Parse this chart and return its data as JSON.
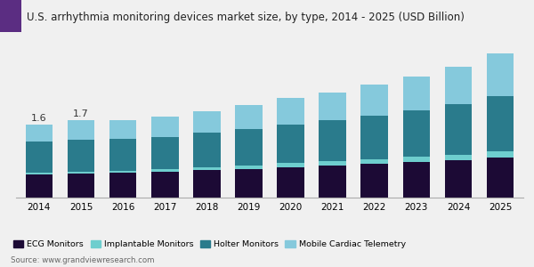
{
  "title": "U.S. arrhythmia monitoring devices market size, by type, 2014 - 2025 (USD Billion)",
  "years": [
    2014,
    2015,
    2016,
    2017,
    2018,
    2019,
    2020,
    2021,
    2022,
    2023,
    2024,
    2025
  ],
  "ecg_monitors": [
    0.5,
    0.52,
    0.54,
    0.57,
    0.6,
    0.63,
    0.67,
    0.7,
    0.74,
    0.78,
    0.82,
    0.87
  ],
  "implantable_monitors": [
    0.04,
    0.04,
    0.04,
    0.05,
    0.06,
    0.07,
    0.08,
    0.09,
    0.1,
    0.11,
    0.12,
    0.14
  ],
  "holter_monitors": [
    0.68,
    0.71,
    0.7,
    0.71,
    0.75,
    0.8,
    0.85,
    0.9,
    0.95,
    1.02,
    1.1,
    1.2
  ],
  "mobile_cardiac_telemetry": [
    0.38,
    0.43,
    0.42,
    0.44,
    0.47,
    0.53,
    0.57,
    0.61,
    0.67,
    0.74,
    0.82,
    0.94
  ],
  "annotations": [
    {
      "year_idx": 0,
      "text": "1.6"
    },
    {
      "year_idx": 1,
      "text": "1.7"
    }
  ],
  "colors": {
    "ecg_monitors": "#1c0a35",
    "implantable_monitors": "#6ecece",
    "holter_monitors": "#2a7b8c",
    "mobile_cardiac_telemetry": "#85c9dc"
  },
  "legend_labels": [
    "ECG Monitors",
    "Implantable Monitors",
    "Holter Monitors",
    "Mobile Cardiac Telemetry"
  ],
  "source": "Source: www.grandviewresearch.com",
  "title_fontsize": 8.5,
  "background_color": "#f0f0f0",
  "plot_bg_color": "#f0f0f0",
  "bar_width": 0.65,
  "ylim": [
    0,
    3.5
  ],
  "title_bar_color1": "#5b2d82",
  "title_bar_color2": "#2d5fa6"
}
